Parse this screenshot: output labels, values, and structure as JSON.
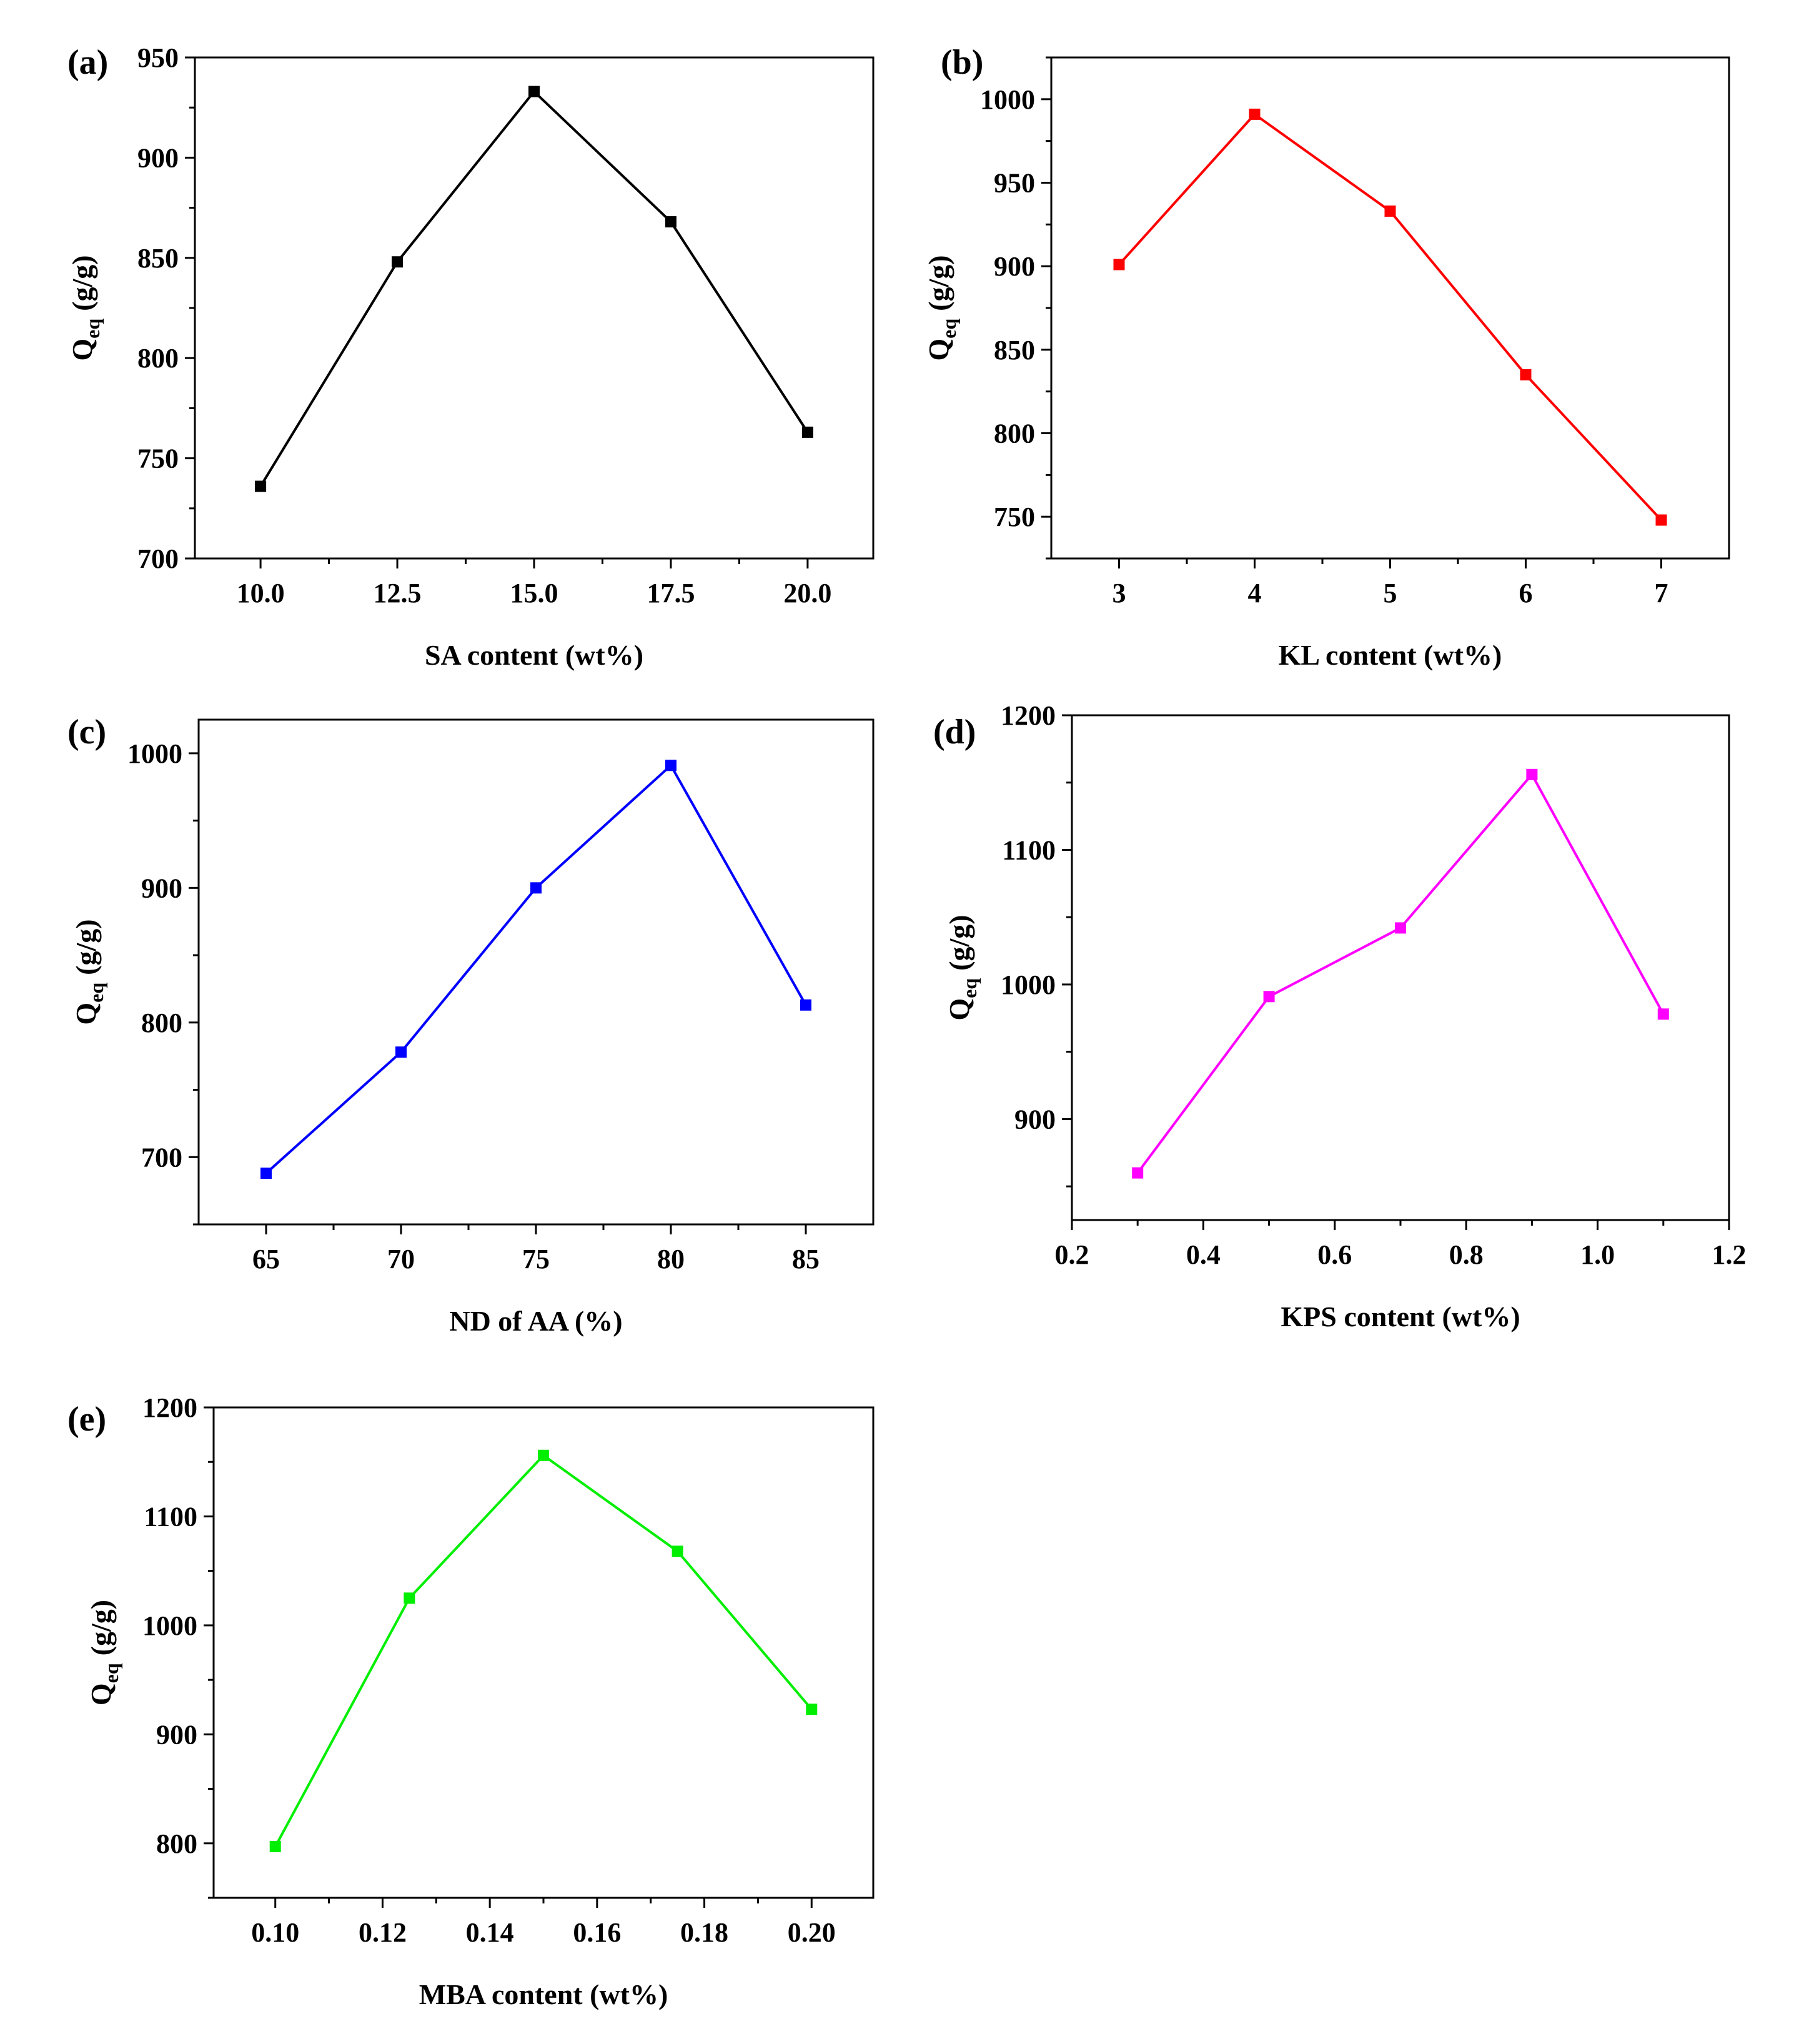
{
  "chart_data": [
    {
      "type": "line",
      "panel_label": "(a)",
      "xlabel": "SA content (wt%)",
      "ylabel_main": "Q",
      "ylabel_sub": "eq",
      "ylabel_unit": "(g/g)",
      "color": "#000000",
      "x": [
        10.0,
        12.5,
        15.0,
        17.5,
        20.0
      ],
      "y": [
        736,
        848,
        933,
        868,
        763
      ],
      "xlim": [
        8.8,
        21.2
      ],
      "ylim": [
        700,
        950
      ],
      "xticks": [
        10.0,
        12.5,
        15.0,
        17.5,
        20.0
      ],
      "xtick_labels": [
        "10.0",
        "12.5",
        "15.0",
        "17.5",
        "20.0"
      ],
      "yticks": [
        700,
        750,
        800,
        850,
        900,
        950
      ],
      "ytick_labels": [
        "700",
        "750",
        "800",
        "850",
        "900",
        "950"
      ]
    },
    {
      "type": "line",
      "panel_label": "(b)",
      "xlabel": "KL content (wt%)",
      "ylabel_main": "Q",
      "ylabel_sub": "eq",
      "ylabel_unit": "(g/g)",
      "color": "#ff0000",
      "x": [
        3,
        4,
        5,
        6,
        7
      ],
      "y": [
        901,
        991,
        933,
        835,
        748
      ],
      "xlim": [
        2.5,
        7.5
      ],
      "ylim": [
        725,
        1025
      ],
      "xticks": [
        3,
        4,
        5,
        6,
        7
      ],
      "xtick_labels": [
        "3",
        "4",
        "5",
        "6",
        "7"
      ],
      "yticks": [
        750,
        800,
        850,
        900,
        950,
        1000
      ],
      "ytick_labels": [
        "750",
        "800",
        "850",
        "900",
        "950",
        "1000"
      ]
    },
    {
      "type": "line",
      "panel_label": "(c)",
      "xlabel": "ND of AA (%)",
      "ylabel_main": "Q",
      "ylabel_sub": "eq",
      "ylabel_unit": "(g/g)",
      "color": "#0000ff",
      "x": [
        65,
        70,
        75,
        80,
        85
      ],
      "y": [
        688,
        778,
        900,
        991,
        813
      ],
      "xlim": [
        62.5,
        87.5
      ],
      "ylim": [
        650,
        1025
      ],
      "xticks": [
        65,
        70,
        75,
        80,
        85
      ],
      "xtick_labels": [
        "65",
        "70",
        "75",
        "80",
        "85"
      ],
      "yticks": [
        700,
        800,
        900,
        1000
      ],
      "ytick_labels": [
        "700",
        "800",
        "900",
        "1000"
      ]
    },
    {
      "type": "line",
      "panel_label": "(d)",
      "xlabel": "KPS content (wt%)",
      "ylabel_main": "Q",
      "ylabel_sub": "eq",
      "ylabel_unit": "(g/g)",
      "color": "#ff00ff",
      "x": [
        0.3,
        0.5,
        0.7,
        0.9,
        1.1
      ],
      "y": [
        860,
        991,
        1042,
        1156,
        978
      ],
      "xlim": [
        0.2,
        1.2
      ],
      "ylim": [
        825,
        1200
      ],
      "xticks": [
        0.2,
        0.4,
        0.6,
        0.8,
        1.0,
        1.2
      ],
      "xtick_labels": [
        "0.2",
        "0.4",
        "0.6",
        "0.8",
        "1.0",
        "1.2"
      ],
      "yticks": [
        900,
        1000,
        1100,
        1200
      ],
      "ytick_labels": [
        "900",
        "1000",
        "1100",
        "1200"
      ]
    },
    {
      "type": "line",
      "panel_label": "(e)",
      "xlabel": "MBA content (wt%)",
      "ylabel_main": "Q",
      "ylabel_sub": "eq",
      "ylabel_unit": "(g/g)",
      "color": "#00ee00",
      "x": [
        0.1,
        0.125,
        0.15,
        0.175,
        0.2
      ],
      "y": [
        797,
        1025,
        1156,
        1068,
        923
      ],
      "xlim": [
        0.0885,
        0.2115
      ],
      "ylim": [
        750,
        1200
      ],
      "xticks": [
        0.1,
        0.12,
        0.14,
        0.16,
        0.18,
        0.2
      ],
      "xtick_labels": [
        "0.10",
        "0.12",
        "0.14",
        "0.16",
        "0.18",
        "0.20"
      ],
      "yticks": [
        800,
        900,
        1000,
        1100,
        1200
      ],
      "ytick_labels": [
        "800",
        "900",
        "1000",
        "1100",
        "1200"
      ]
    }
  ]
}
